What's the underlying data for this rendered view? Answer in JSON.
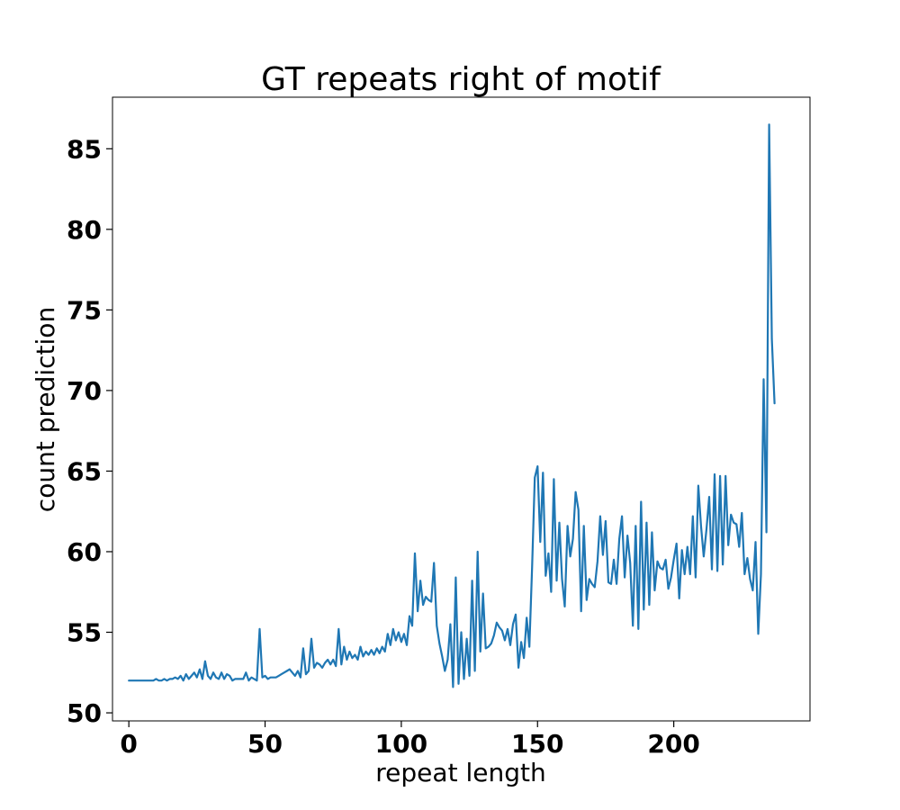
{
  "chart_data": {
    "type": "line",
    "title": "GT repeats right of motif",
    "xlabel": "repeat length",
    "ylabel": "count prediction",
    "xlim": [
      -6,
      250
    ],
    "ylim": [
      49.5,
      88.2
    ],
    "xticks": [
      0,
      50,
      100,
      150,
      200
    ],
    "yticks": [
      50,
      55,
      60,
      65,
      70,
      75,
      80,
      85
    ],
    "grid": false,
    "colors": {
      "series": "#1f77b4"
    },
    "series": [
      {
        "x": [
          0,
          1,
          2,
          3,
          4,
          5,
          6,
          7,
          8,
          9,
          10,
          11,
          12,
          13,
          14,
          15,
          16,
          17,
          18,
          19,
          20,
          21,
          22,
          23,
          24,
          25,
          26,
          27,
          28,
          29,
          30,
          31,
          32,
          33,
          34,
          35,
          36,
          37,
          38,
          39,
          40,
          41,
          42,
          43,
          44,
          45,
          46,
          47,
          48,
          49,
          50,
          51,
          52,
          53,
          54,
          55,
          56,
          57,
          58,
          59,
          60,
          61,
          62,
          63,
          64,
          65,
          66,
          67,
          68,
          69,
          70,
          71,
          72,
          73,
          74,
          75,
          76,
          77,
          78,
          79,
          80,
          81,
          82,
          83,
          84,
          85,
          86,
          87,
          88,
          89,
          90,
          91,
          92,
          93,
          94,
          95,
          96,
          97,
          98,
          99,
          100,
          101,
          102,
          103,
          104,
          105,
          106,
          107,
          108,
          109,
          110,
          111,
          112,
          113,
          114,
          115,
          116,
          117,
          118,
          119,
          120,
          121,
          122,
          123,
          124,
          125,
          126,
          127,
          128,
          129,
          130,
          131,
          132,
          133,
          134,
          135,
          136,
          137,
          138,
          139,
          140,
          141,
          142,
          143,
          144,
          145,
          146,
          147,
          148,
          149,
          150,
          151,
          152,
          153,
          154,
          155,
          156,
          157,
          158,
          159,
          160,
          161,
          162,
          163,
          164,
          165,
          166,
          167,
          168,
          169,
          170,
          171,
          172,
          173,
          174,
          175,
          176,
          177,
          178,
          179,
          180,
          181,
          182,
          183,
          184,
          185,
          186,
          187,
          188,
          189,
          190,
          191,
          192,
          193,
          194,
          195,
          196,
          197,
          198,
          199,
          200,
          201,
          202,
          203,
          204,
          205,
          206,
          207,
          208,
          209,
          210,
          211,
          212,
          213,
          214,
          215,
          216,
          217,
          218,
          219,
          220,
          221,
          222,
          223,
          224,
          225,
          226,
          227,
          228,
          229,
          230,
          231,
          232,
          233,
          234,
          235,
          236,
          237
        ],
        "values": [
          52.0,
          52.0,
          52.0,
          52.0,
          52.0,
          52.0,
          52.0,
          52.0,
          52.0,
          52.0,
          52.1,
          52.0,
          52.0,
          52.1,
          52.0,
          52.1,
          52.1,
          52.2,
          52.1,
          52.3,
          52.0,
          52.4,
          52.1,
          52.3,
          52.5,
          52.2,
          52.7,
          52.1,
          53.2,
          52.3,
          52.1,
          52.5,
          52.2,
          52.1,
          52.5,
          52.1,
          52.4,
          52.3,
          52.0,
          52.1,
          52.1,
          52.1,
          52.1,
          52.5,
          52.0,
          52.2,
          52.1,
          52.0,
          55.2,
          52.2,
          52.3,
          52.1,
          52.2,
          52.2,
          52.2,
          52.3,
          52.4,
          52.5,
          52.6,
          52.7,
          52.5,
          52.3,
          52.6,
          52.2,
          54.0,
          52.4,
          52.6,
          54.6,
          52.8,
          53.1,
          53.0,
          52.8,
          53.1,
          53.3,
          53.0,
          53.3,
          52.9,
          55.2,
          53.0,
          54.1,
          53.3,
          53.8,
          53.4,
          53.6,
          53.3,
          54.1,
          53.5,
          53.8,
          53.6,
          53.9,
          53.6,
          54.0,
          53.7,
          54.1,
          53.8,
          54.9,
          54.2,
          55.2,
          54.5,
          55.0,
          54.4,
          54.9,
          54.2,
          56.0,
          55.4,
          59.9,
          56.3,
          58.2,
          56.7,
          57.2,
          57.0,
          56.9,
          59.3,
          55.4,
          54.3,
          53.5,
          52.6,
          53.3,
          55.5,
          51.6,
          58.4,
          51.8,
          55.0,
          52.1,
          54.6,
          52.3,
          58.2,
          52.6,
          60.0,
          53.8,
          57.4,
          54.0,
          54.1,
          54.3,
          54.8,
          55.6,
          55.3,
          55.1,
          54.5,
          55.2,
          54.2,
          55.5,
          56.1,
          52.8,
          54.4,
          53.4,
          55.9,
          54.1,
          59.0,
          64.6,
          65.3,
          60.6,
          64.9,
          58.5,
          59.9,
          57.5,
          64.5,
          58.2,
          61.8,
          58.3,
          56.6,
          61.6,
          59.7,
          60.8,
          63.7,
          62.6,
          56.3,
          61.6,
          57.0,
          58.3,
          58.0,
          57.8,
          59.4,
          62.2,
          59.8,
          61.9,
          58.1,
          58.0,
          59.5,
          58.0,
          60.8,
          62.2,
          58.4,
          61.0,
          59.3,
          55.4,
          61.6,
          55.2,
          63.1,
          56.4,
          61.8,
          56.7,
          61.2,
          57.6,
          59.4,
          59.0,
          58.9,
          59.5,
          57.7,
          58.4,
          59.5,
          60.5,
          57.1,
          60.1,
          58.6,
          60.3,
          58.6,
          62.2,
          58.4,
          64.1,
          61.6,
          59.7,
          61.4,
          63.4,
          58.9,
          64.8,
          58.8,
          64.7,
          59.2,
          64.7,
          60.4,
          62.3,
          61.8,
          61.7,
          60.3,
          62.4,
          58.6,
          59.6,
          58.3,
          57.6,
          60.6,
          54.9,
          58.6,
          70.7,
          61.2,
          86.5,
          73.2,
          69.2
        ]
      }
    ]
  }
}
